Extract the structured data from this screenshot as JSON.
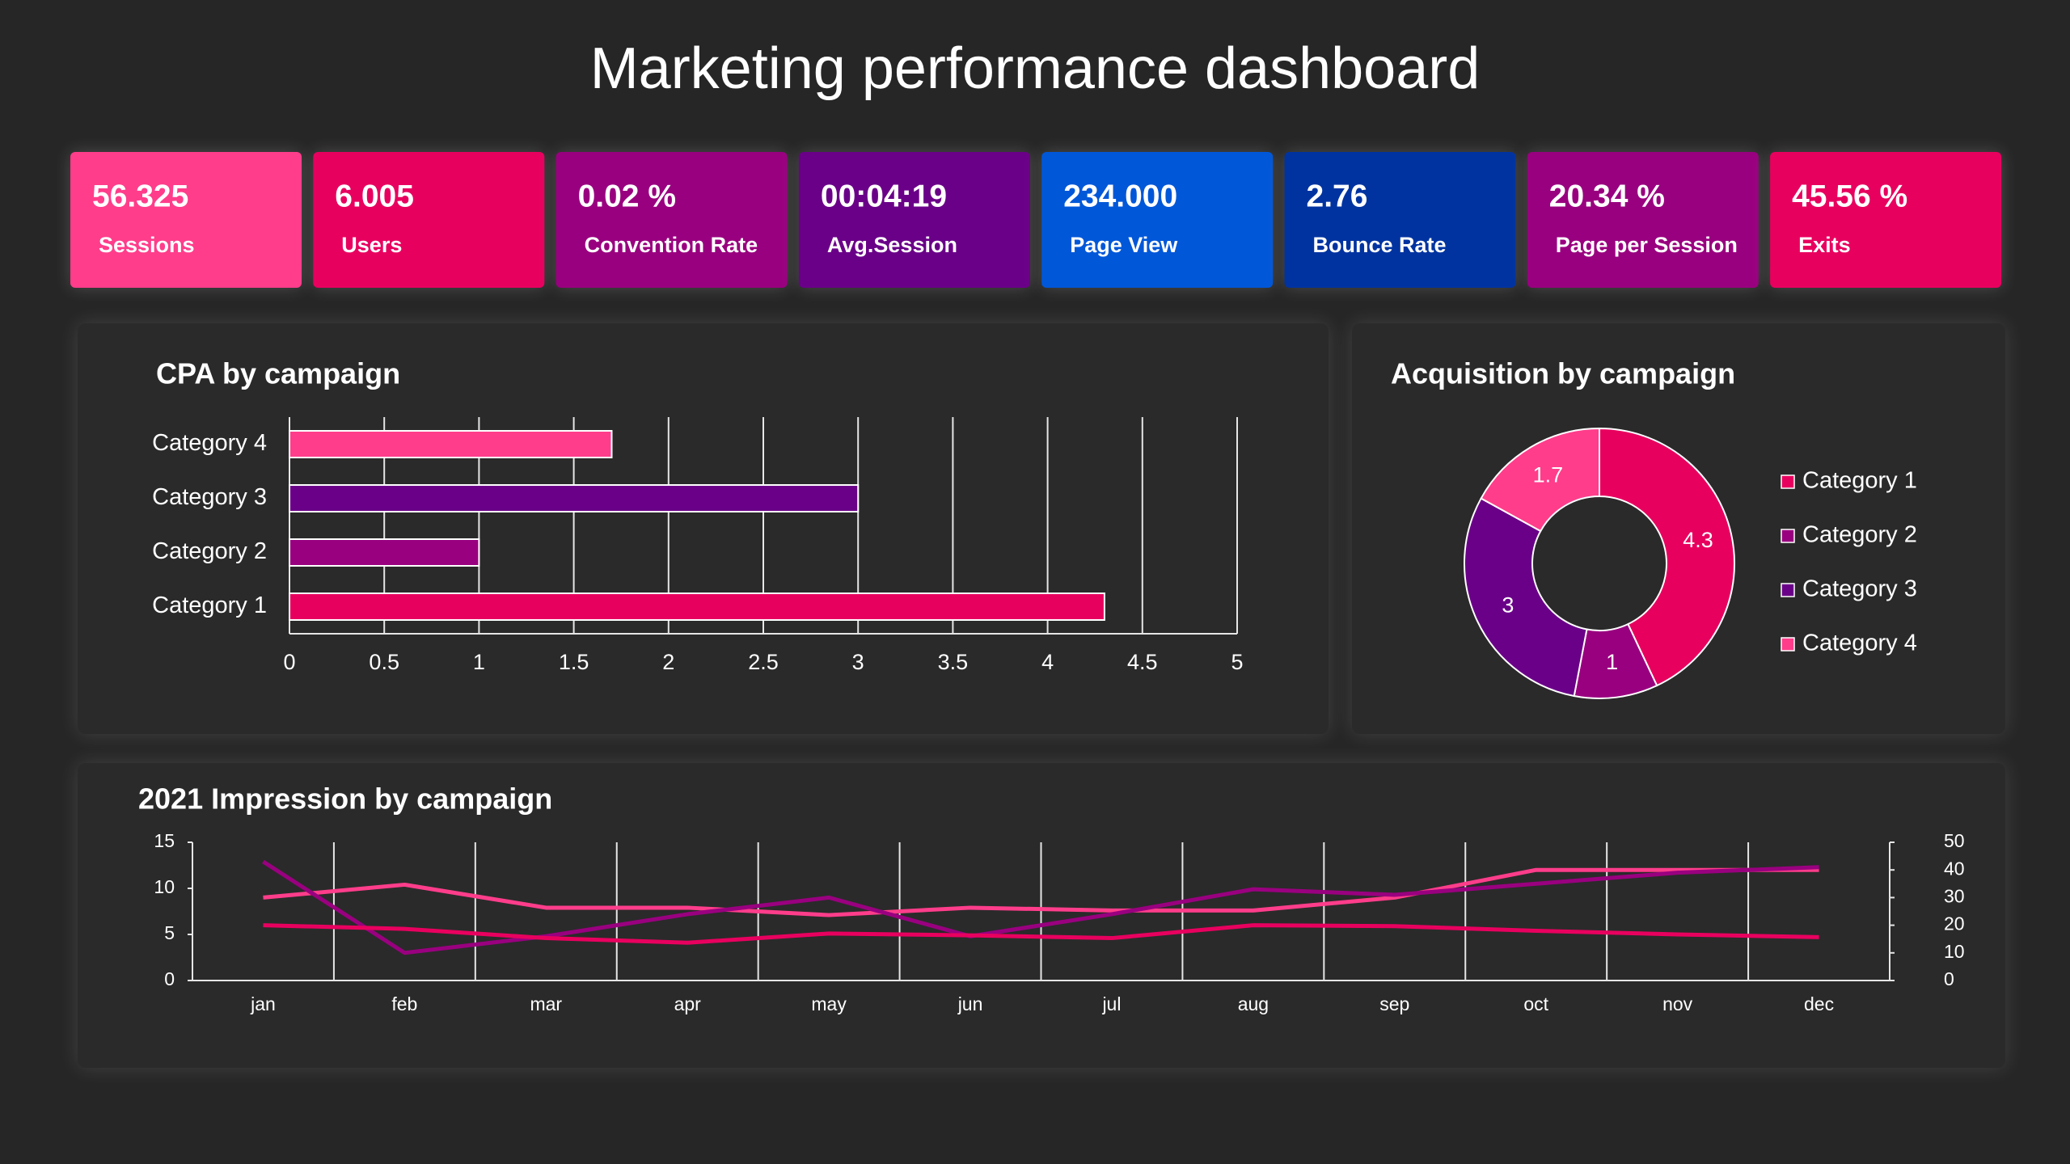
{
  "header": {
    "title": "Marketing performance dashboard"
  },
  "kpis": [
    {
      "value": "56.325",
      "label": "Sessions",
      "color": "#ff3d8b"
    },
    {
      "value": "6.005",
      "label": "Users",
      "color": "#e8005f"
    },
    {
      "value": "0.02 %",
      "label": "Convention Rate",
      "color": "#99007f"
    },
    {
      "value": "00:04:19",
      "label": "Avg.Session",
      "color": "#6a0088"
    },
    {
      "value": "234.000",
      "label": "Page View",
      "color": "#0057d8"
    },
    {
      "value": "2.76",
      "label": "Bounce Rate",
      "color": "#0033a0"
    },
    {
      "value": "20.34 %",
      "label": "Page per Session",
      "color": "#99007f"
    },
    {
      "value": "45.56 %",
      "label": "Exits",
      "color": "#e8005f"
    }
  ],
  "chart_data": [
    {
      "type": "bar",
      "orientation": "horizontal",
      "title": "CPA by campaign",
      "categories": [
        "Category 1",
        "Category 2",
        "Category 3",
        "Category 4"
      ],
      "values": [
        4.3,
        1,
        3,
        1.7
      ],
      "colors": [
        "#e8005f",
        "#99007f",
        "#6a0088",
        "#ff3d8b"
      ],
      "xlim": [
        0,
        5
      ],
      "xticks": [
        0,
        0.5,
        1,
        1.5,
        2,
        2.5,
        3,
        3.5,
        4,
        4.5,
        5
      ],
      "grid": true
    },
    {
      "type": "pie",
      "title": "Acquisition by campaign",
      "categories": [
        "Category 1",
        "Category 2",
        "Category 3",
        "Category 4"
      ],
      "values": [
        4.3,
        1,
        3,
        1.7
      ],
      "colors": [
        "#e8005f",
        "#99007f",
        "#6a0088",
        "#ff3d8b"
      ],
      "donut": true,
      "legend": "right"
    },
    {
      "type": "line",
      "title": "2021 Impression by campaign",
      "categories": [
        "jan",
        "feb",
        "mar",
        "apr",
        "may",
        "jun",
        "jul",
        "aug",
        "sep",
        "oct",
        "nov",
        "dec"
      ],
      "series": [
        {
          "color": "#ff3d8b",
          "values": [
            9,
            10.4,
            7.9,
            7.9,
            7.1,
            7.9,
            7.6,
            7.6,
            9,
            12,
            12,
            12
          ]
        },
        {
          "color": "#99007f",
          "axis": "y2",
          "values": [
            43,
            10,
            16,
            24,
            30,
            16,
            24,
            33,
            31,
            35,
            39,
            41
          ]
        },
        {
          "color": "#e8005f",
          "values": [
            6,
            5.6,
            4.6,
            4.1,
            5.1,
            4.9,
            4.6,
            6,
            5.9,
            5.4,
            5,
            4.7
          ]
        }
      ],
      "ylim": [
        0,
        15
      ],
      "yticks": [
        0,
        5,
        10,
        15
      ],
      "y2lim": [
        0,
        50
      ],
      "y2ticks": [
        0,
        10,
        20,
        30,
        40,
        50
      ],
      "grid": true
    }
  ]
}
